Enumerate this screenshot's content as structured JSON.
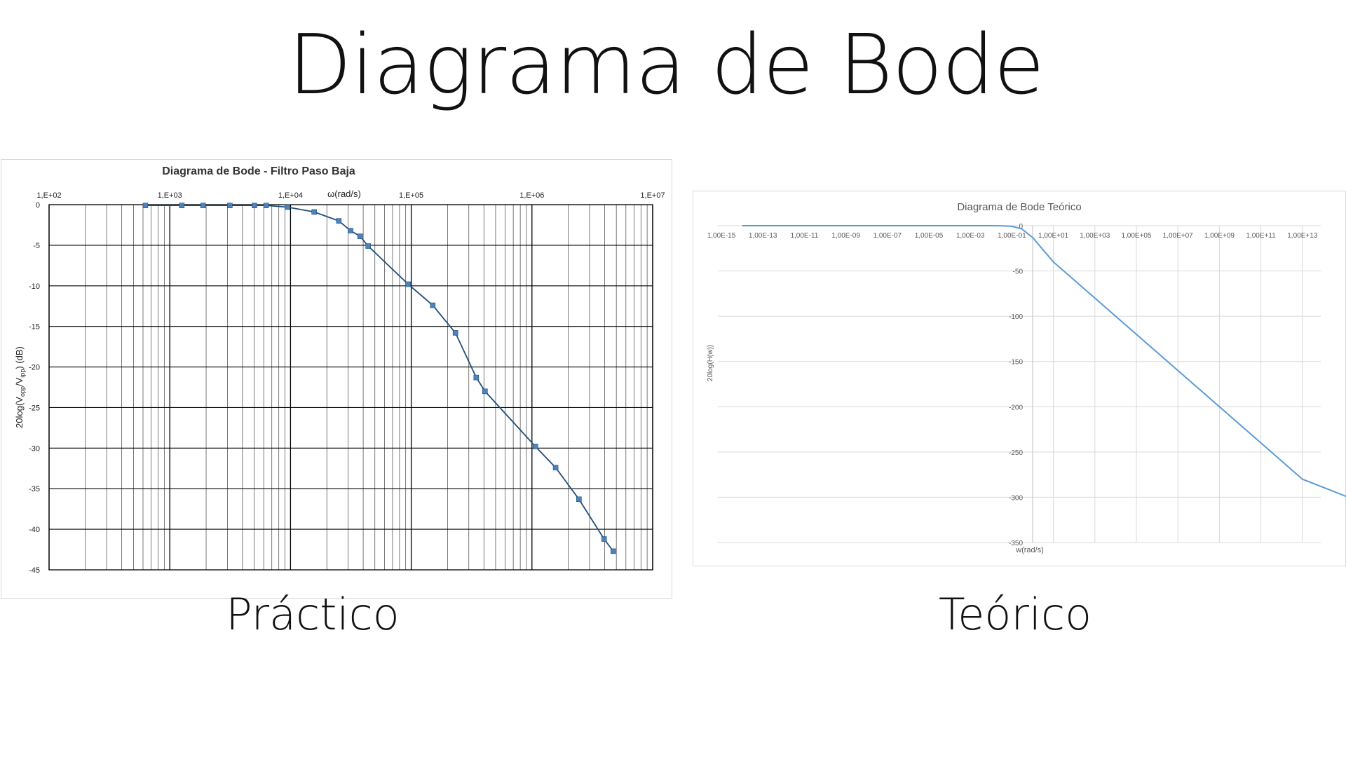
{
  "slide": {
    "title": "Diagrama de Bode",
    "caption_practical": "Práctico",
    "caption_theoretical": "Teórico"
  },
  "chart_data": [
    {
      "type": "line",
      "title": "Diagrama de Bode - Filtro Paso Baja",
      "xlabel": "ω(rad/s)",
      "ylabel_parts": [
        "20log(V",
        "opp",
        "/V",
        "ipp",
        ") (dB)"
      ],
      "x_scale": "log",
      "xlim": [
        100,
        10000000
      ],
      "ylim": [
        -45,
        0
      ],
      "x_ticks": [
        "1,E+02",
        "1,E+03",
        "1,E+04",
        "1,E+05",
        "1,E+06",
        "1,E+07"
      ],
      "x_tick_values": [
        100,
        1000,
        10000,
        100000,
        1000000,
        10000000
      ],
      "x_axis_position": "top",
      "y_ticks": [
        0,
        -5,
        -10,
        -15,
        -20,
        -25,
        -30,
        -35,
        -40,
        -45
      ],
      "grid": true,
      "colors": {
        "line": "#1f4e79",
        "marker": "#4f81bd",
        "grid": "#000000"
      },
      "series": [
        {
          "x": [
            628,
            1257,
            1885,
            3142,
            5027,
            6283,
            9425,
            15708,
            25133,
            31416,
            37699,
            43982,
            94248,
            150796,
            232478,
            345575,
            408407,
            1068142,
            1570796,
            2450442,
            3958407,
            4712389
          ],
          "y": [
            -0.1,
            -0.1,
            -0.1,
            -0.1,
            -0.1,
            -0.1,
            -0.3,
            -0.9,
            -2.0,
            -3.2,
            -3.9,
            -5.1,
            -9.8,
            -12.4,
            -15.8,
            -21.3,
            -23.0,
            -29.8,
            -32.4,
            -36.3,
            -41.2,
            -42.7
          ]
        }
      ]
    },
    {
      "type": "line",
      "title": "Diagrama de Bode Teórico",
      "xlabel": "w(rad/s)",
      "ylabel": "20log(H(w))",
      "x_scale": "log",
      "x_ticks": [
        "1,00E-15",
        "1,00E-13",
        "1,00E-11",
        "1,00E-09",
        "1,00E-07",
        "1,00E-05",
        "1,00E-03",
        "1,00E-01",
        "1,00E+01",
        "1,00E+03",
        "1,00E+05",
        "1,00E+07",
        "1,00E+09",
        "1,00E+11",
        "1,00E+13"
      ],
      "ylim": [
        -350,
        0
      ],
      "y_ticks": [
        0,
        -50,
        -100,
        -150,
        -200,
        -250,
        -300,
        -350
      ],
      "grid": true,
      "colors": {
        "line": "#5b9bd5",
        "grid": "#d9d9d9"
      },
      "series": [
        {
          "x": [
            1e-14,
            0.0001,
            0.001,
            0.01,
            0.03,
            0.1,
            0.3,
            1,
            10,
            1000,
            100000,
            10000000,
            1000000000,
            100000000000,
            10000000000000,
            10000000000000000
          ],
          "y": [
            0,
            0,
            0,
            0,
            -0.1,
            -0.7,
            -3.5,
            -13,
            -40,
            -80,
            -120,
            -160,
            -200,
            -240,
            -280,
            -307
          ]
        }
      ]
    }
  ]
}
